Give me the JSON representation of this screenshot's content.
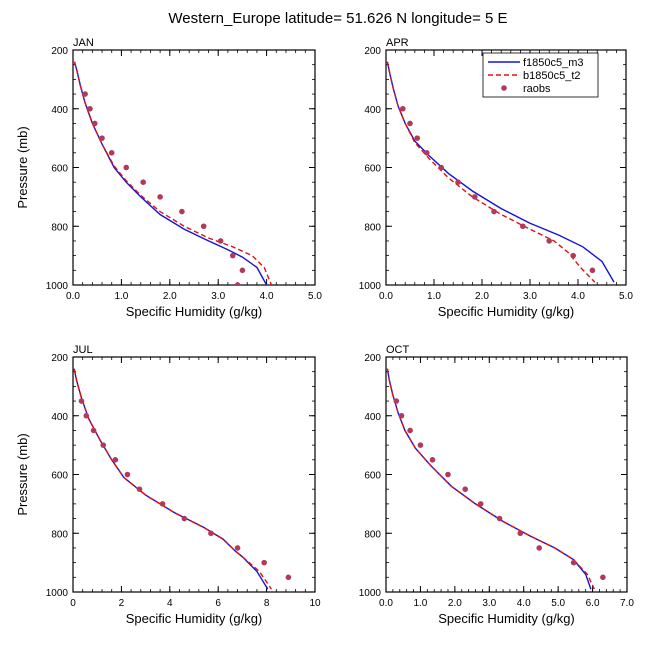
{
  "figure_title": "Western_Europe  latitude= 51.626 N longitude= 5 E",
  "legend_entries": [
    {
      "name": "f1850c5_m3",
      "color": "#1414d8",
      "style": "solid"
    },
    {
      "name": "b1850c5_t2",
      "color": "#e01010",
      "style": "dashed"
    },
    {
      "name": "raobs",
      "color": "#b03a5a",
      "style": "dot"
    }
  ],
  "chart_data": [
    {
      "type": "line",
      "title": "JAN",
      "xlabel": "Specific Humidity (g/kg)",
      "ylabel": "Pressure (mb)",
      "xlim": [
        0,
        5
      ],
      "ylim": [
        1000,
        200
      ],
      "y_inverted": true,
      "xticks": [
        0,
        1,
        2,
        3,
        4,
        5
      ],
      "xtick_labels": [
        "0.0",
        "1.0",
        "2.0",
        "3.0",
        "4.0",
        "5.0"
      ],
      "yticks": [
        200,
        400,
        600,
        800,
        1000
      ],
      "series": [
        {
          "name": "f1850c5_m3",
          "x": [
            0.03,
            0.08,
            0.15,
            0.25,
            0.4,
            0.6,
            0.85,
            1.1,
            1.4,
            1.8,
            2.3,
            2.8,
            3.2,
            3.5,
            3.8,
            4.0
          ],
          "y": [
            240,
            270,
            320,
            380,
            450,
            520,
            600,
            650,
            700,
            760,
            810,
            850,
            880,
            905,
            940,
            1000
          ]
        },
        {
          "name": "b1850c5_t2",
          "x": [
            0.03,
            0.08,
            0.15,
            0.25,
            0.4,
            0.6,
            0.85,
            1.1,
            1.4,
            1.8,
            2.3,
            2.8,
            3.3,
            3.7,
            3.95,
            4.1
          ],
          "y": [
            240,
            270,
            320,
            380,
            450,
            520,
            595,
            645,
            695,
            750,
            800,
            840,
            870,
            900,
            940,
            1000
          ]
        },
        {
          "name": "raobs",
          "x": [
            0.25,
            0.35,
            0.45,
            0.6,
            0.8,
            1.1,
            1.45,
            1.8,
            2.25,
            2.7,
            3.05,
            3.3,
            3.5,
            3.4
          ],
          "y": [
            350,
            400,
            450,
            500,
            550,
            600,
            650,
            700,
            750,
            800,
            850,
            900,
            950,
            1000
          ]
        }
      ]
    },
    {
      "type": "line",
      "title": "APR",
      "xlabel": "Specific Humidity (g/kg)",
      "ylabel": "",
      "xlim": [
        0,
        5
      ],
      "ylim": [
        1000,
        200
      ],
      "y_inverted": true,
      "xticks": [
        0,
        1,
        2,
        3,
        4,
        5
      ],
      "xtick_labels": [
        "0.0",
        "1.0",
        "2.0",
        "3.0",
        "4.0",
        "5.0"
      ],
      "yticks": [
        200,
        400,
        600,
        800,
        1000
      ],
      "series": [
        {
          "name": "f1850c5_m3",
          "x": [
            0.03,
            0.08,
            0.15,
            0.25,
            0.4,
            0.6,
            0.9,
            1.3,
            1.8,
            2.4,
            3.0,
            3.6,
            4.1,
            4.5,
            4.75
          ],
          "y": [
            240,
            280,
            330,
            390,
            450,
            510,
            560,
            620,
            680,
            740,
            790,
            830,
            870,
            920,
            990
          ]
        },
        {
          "name": "b1850c5_t2",
          "x": [
            0.03,
            0.08,
            0.15,
            0.25,
            0.4,
            0.6,
            0.9,
            1.3,
            1.8,
            2.4,
            3.0,
            3.5,
            3.8,
            4.05,
            4.35
          ],
          "y": [
            240,
            280,
            330,
            390,
            450,
            515,
            570,
            635,
            700,
            760,
            810,
            850,
            890,
            940,
            990
          ]
        },
        {
          "name": "raobs",
          "x": [
            0.35,
            0.5,
            0.65,
            0.85,
            1.15,
            1.5,
            1.85,
            2.25,
            2.85,
            3.4,
            3.9,
            4.3
          ],
          "y": [
            400,
            450,
            500,
            550,
            600,
            650,
            700,
            750,
            800,
            850,
            900,
            950
          ]
        }
      ]
    },
    {
      "type": "line",
      "title": "JUL",
      "xlabel": "Specific Humidity (g/kg)",
      "ylabel": "Pressure (mb)",
      "xlim": [
        0,
        10
      ],
      "ylim": [
        1000,
        200
      ],
      "y_inverted": true,
      "xticks": [
        0,
        2,
        4,
        6,
        8,
        10
      ],
      "xtick_labels": [
        "0",
        "2",
        "4",
        "6",
        "8",
        "10"
      ],
      "yticks": [
        200,
        400,
        600,
        800,
        1000
      ],
      "series": [
        {
          "name": "f1850c5_m3",
          "x": [
            0.05,
            0.15,
            0.35,
            0.65,
            1.1,
            1.6,
            2.1,
            3.0,
            4.2,
            5.4,
            6.2,
            6.7,
            7.0,
            7.6,
            8.05
          ],
          "y": [
            240,
            280,
            340,
            410,
            480,
            550,
            610,
            670,
            730,
            780,
            820,
            860,
            880,
            930,
            990
          ]
        },
        {
          "name": "b1850c5_t2",
          "x": [
            0.05,
            0.15,
            0.35,
            0.65,
            1.1,
            1.6,
            2.1,
            3.0,
            4.2,
            5.4,
            6.2,
            6.7,
            7.0,
            7.7,
            8.2
          ],
          "y": [
            240,
            280,
            340,
            410,
            480,
            550,
            610,
            670,
            730,
            780,
            820,
            860,
            880,
            930,
            990
          ]
        },
        {
          "name": "raobs",
          "x": [
            0.35,
            0.55,
            0.85,
            1.25,
            1.75,
            2.25,
            2.75,
            3.7,
            4.6,
            5.7,
            6.8,
            7.9,
            8.9
          ],
          "y": [
            350,
            400,
            450,
            500,
            550,
            600,
            650,
            700,
            750,
            800,
            850,
            900,
            950
          ]
        }
      ]
    },
    {
      "type": "line",
      "title": "OCT",
      "xlabel": "Specific Humidity (g/kg)",
      "ylabel": "",
      "xlim": [
        0,
        7
      ],
      "ylim": [
        1000,
        200
      ],
      "y_inverted": true,
      "xticks": [
        0,
        1,
        2,
        3,
        4,
        5,
        6,
        7
      ],
      "xtick_labels": [
        "0.0",
        "1.0",
        "2.0",
        "3.0",
        "4.0",
        "5.0",
        "6.0",
        "7.0"
      ],
      "yticks": [
        200,
        400,
        600,
        800,
        1000
      ],
      "series": [
        {
          "name": "f1850c5_m3",
          "x": [
            0.04,
            0.1,
            0.2,
            0.35,
            0.55,
            0.85,
            1.3,
            1.9,
            2.6,
            3.4,
            4.2,
            4.9,
            5.45,
            5.8,
            5.95
          ],
          "y": [
            240,
            280,
            330,
            390,
            450,
            510,
            570,
            640,
            700,
            760,
            810,
            850,
            890,
            940,
            990
          ]
        },
        {
          "name": "b1850c5_t2",
          "x": [
            0.04,
            0.1,
            0.2,
            0.35,
            0.55,
            0.85,
            1.3,
            1.9,
            2.6,
            3.4,
            4.2,
            4.9,
            5.45,
            5.85,
            6.05
          ],
          "y": [
            240,
            280,
            330,
            390,
            450,
            510,
            570,
            640,
            700,
            760,
            810,
            850,
            890,
            940,
            990
          ]
        },
        {
          "name": "raobs",
          "x": [
            0.3,
            0.45,
            0.7,
            1.0,
            1.35,
            1.8,
            2.3,
            2.75,
            3.3,
            3.9,
            4.45,
            5.45,
            6.3
          ],
          "y": [
            350,
            400,
            450,
            500,
            550,
            600,
            650,
            700,
            750,
            800,
            850,
            900,
            950
          ]
        }
      ]
    }
  ]
}
